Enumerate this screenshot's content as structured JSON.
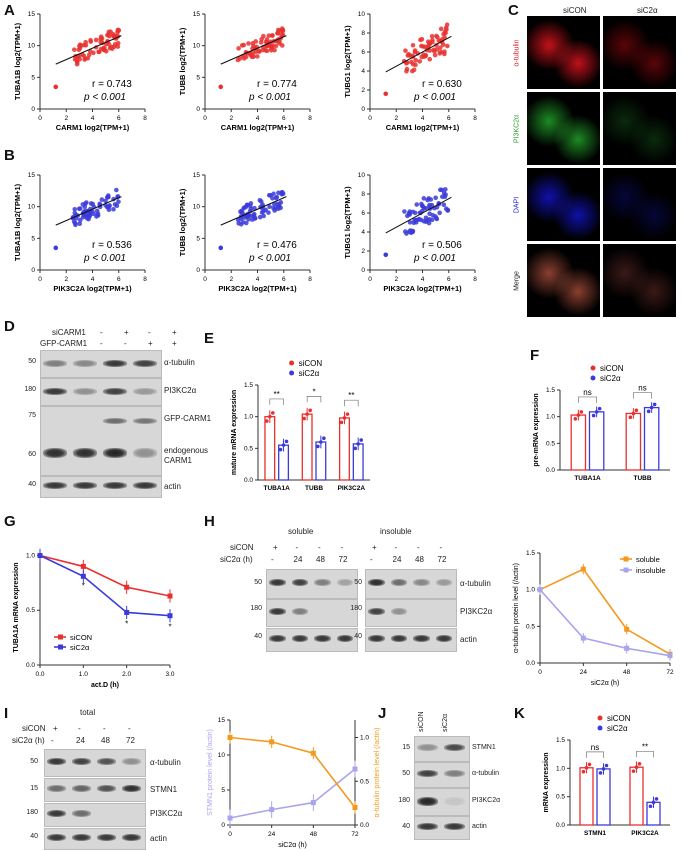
{
  "panel_labels": {
    "A": "A",
    "B": "B",
    "C": "C",
    "D": "D",
    "E": "E",
    "F": "F",
    "G": "G",
    "H": "H",
    "I": "I",
    "J": "J",
    "K": "K"
  },
  "colors": {
    "red": "#e8312f",
    "blue": "#3b3bd9",
    "orange": "#f39a1e",
    "lavender": "#a9a4ee"
  },
  "scatterA": [
    {
      "ylabel": "TUBA1B log2(TPM+1)",
      "xlabel": "CARM1 log2(TPM+1)",
      "r": "r = 0.743",
      "p": "p < 0.001",
      "xticks": [
        "0",
        "2",
        "4",
        "6",
        "8"
      ],
      "yticks": [
        "0",
        "5",
        "10",
        "15"
      ],
      "ymax": 15
    },
    {
      "ylabel": "TUBB log2(TPM+1)",
      "xlabel": "CARM1 log2(TPM+1)",
      "r": "r = 0.774",
      "p": "p < 0.001",
      "xticks": [
        "0",
        "2",
        "4",
        "6",
        "8"
      ],
      "yticks": [
        "0",
        "5",
        "10",
        "15"
      ],
      "ymax": 15
    },
    {
      "ylabel": "TUBG1 log2(TPM+1)",
      "xlabel": "CARM1 log2(TPM+1)",
      "r": "r = 0.630",
      "p": "p < 0.001",
      "xticks": [
        "0",
        "2",
        "4",
        "6",
        "8"
      ],
      "yticks": [
        "0",
        "2",
        "4",
        "6",
        "8",
        "10"
      ],
      "ymax": 10
    }
  ],
  "scatterB": [
    {
      "ylabel": "TUBA1B log2(TPM+1)",
      "xlabel": "PIK3C2A log2(TPM+1)",
      "r": "r = 0.536",
      "p": "p < 0.001",
      "xticks": [
        "0",
        "2",
        "4",
        "6",
        "8"
      ],
      "yticks": [
        "0",
        "5",
        "10",
        "15"
      ],
      "ymax": 15
    },
    {
      "ylabel": "TUBB log2(TPM+1)",
      "xlabel": "PIK3C2A log2(TPM+1)",
      "r": "r = 0.476",
      "p": "p < 0.001",
      "xticks": [
        "0",
        "2",
        "4",
        "6",
        "8"
      ],
      "yticks": [
        "0",
        "5",
        "10",
        "15"
      ],
      "ymax": 15
    },
    {
      "ylabel": "TUBG1 log2(TPM+1)",
      "xlabel": "PIK3C2A log2(TPM+1)",
      "r": "r = 0.506",
      "p": "p < 0.001",
      "xticks": [
        "0",
        "2",
        "4",
        "6",
        "8"
      ],
      "yticks": [
        "0",
        "2",
        "4",
        "6",
        "8",
        "10"
      ],
      "ymax": 10
    }
  ],
  "panelC": {
    "col1": "siCON",
    "col2": "siC2α",
    "rows": [
      "α-tubulin",
      "PI3KC2α",
      "DAPI",
      "Merge"
    ]
  },
  "panelD": {
    "row1_label": "siCARM1",
    "row1": [
      "-",
      "+",
      "-",
      "+"
    ],
    "row2_label": "GFP-CARM1",
    "row2": [
      "-",
      "-",
      "+",
      "+"
    ],
    "mw": [
      "50",
      "180",
      "75",
      "60",
      "40"
    ],
    "bands": [
      "α-tubulin",
      "PI3KC2α",
      "GFP-CARM1",
      "endogenous",
      "CARM1",
      "actin"
    ]
  },
  "panelE": {
    "legend": [
      "siCON",
      "siC2α"
    ],
    "ylabel": "mature mRNA expression",
    "yticks": [
      "0.0",
      "0.5",
      "1.0",
      "1.5"
    ],
    "groups": [
      "TUBA1A",
      "TUBB",
      "PIK3C2A"
    ],
    "sig": [
      "**",
      "*",
      "**"
    ],
    "values": [
      [
        1.0,
        0.55
      ],
      [
        1.04,
        0.6
      ],
      [
        0.98,
        0.57
      ]
    ]
  },
  "panelF": {
    "legend": [
      "siCON",
      "siC2α"
    ],
    "ylabel": "pre-mRNA expression",
    "yticks": [
      "0.0",
      "0.5",
      "1.0",
      "1.5"
    ],
    "groups": [
      "TUBA1A",
      "TUBB"
    ],
    "sig": [
      "ns",
      "ns"
    ],
    "values": [
      [
        1.03,
        1.09
      ],
      [
        1.06,
        1.17
      ]
    ]
  },
  "panelG": {
    "ylabel": "TUBA1A mRNA expression",
    "xlabel": "act.D (h)",
    "yticks": [
      "0.0",
      "0.5",
      "1.0"
    ],
    "xticks": [
      "0.0",
      "1.0",
      "2.0",
      "3.0"
    ],
    "legend": [
      "siCON",
      "siC2α"
    ],
    "x": [
      0,
      1,
      2,
      3
    ],
    "siCON": [
      1.0,
      0.9,
      0.71,
      0.63
    ],
    "siC2a": [
      1.0,
      0.81,
      0.48,
      0.45
    ],
    "stars": [
      "*",
      "*",
      "*"
    ]
  },
  "panelH": {
    "soluble": "soluble",
    "insoluble": "insoluble",
    "row1_label": "siCON",
    "row1": [
      "+",
      "-",
      "-",
      "-"
    ],
    "row2_label": "siC2α (h)",
    "row2": [
      "-",
      "24",
      "48",
      "72"
    ],
    "mw": [
      "50",
      "180",
      "40"
    ],
    "bands": [
      "α-tubulin",
      "PI3KC2α",
      "actin"
    ]
  },
  "panelHchart": {
    "ylabel": "α-tubulin protein level (/actin)",
    "xlabel": "siC2α (h)",
    "yticks": [
      "0.0",
      "0.5",
      "1.0",
      "1.5"
    ],
    "xticks": [
      "0",
      "24",
      "48",
      "72"
    ],
    "legend": [
      "soluble",
      "insoluble"
    ],
    "x": [
      0,
      24,
      48,
      72
    ],
    "soluble": [
      1.0,
      1.28,
      0.46,
      0.12
    ],
    "insoluble": [
      1.0,
      0.34,
      0.2,
      0.1
    ]
  },
  "panelI": {
    "total": "total",
    "row1_label": "siCON",
    "row1": [
      "+",
      "-",
      "-",
      "-"
    ],
    "row2_label": "siC2α (h)",
    "row2": [
      "-",
      "24",
      "48",
      "72"
    ],
    "mw": [
      "50",
      "15",
      "180",
      "40"
    ],
    "bands": [
      "α-tubulin",
      "STMN1",
      "PI3KC2α",
      "actin"
    ]
  },
  "panelIchart": {
    "ylabel_left": "STMN1 protein level (/actin)",
    "ylabel_right": "α-tubulin protein level (/actin)",
    "xlabel": "siC2α (h)",
    "yticks_left": [
      "0",
      "5",
      "10",
      "15"
    ],
    "yticks_right": [
      "0.0",
      "0.5",
      "1.0"
    ],
    "xticks": [
      "0",
      "24",
      "48",
      "72"
    ],
    "x": [
      0,
      24,
      48,
      72
    ],
    "stmn1": [
      1.0,
      2.2,
      3.2,
      8.0
    ],
    "tubulin": [
      1.0,
      0.95,
      0.82,
      0.2
    ]
  },
  "panelJ": {
    "cols": [
      "siCON",
      "siC2α"
    ],
    "mw": [
      "15",
      "50",
      "180",
      "40"
    ],
    "bands": [
      "STMN1",
      "α-tubulin",
      "PI3KC2α",
      "actin"
    ]
  },
  "panelK": {
    "legend": [
      "siCON",
      "siC2α"
    ],
    "ylabel": "mRNA expression",
    "yticks": [
      "0.0",
      "0.5",
      "1.0",
      "1.5"
    ],
    "groups": [
      "STMN1",
      "PIK3C2A"
    ],
    "sig": [
      "ns",
      "**"
    ],
    "values": [
      [
        1.01,
        0.99
      ],
      [
        1.02,
        0.4
      ]
    ]
  }
}
